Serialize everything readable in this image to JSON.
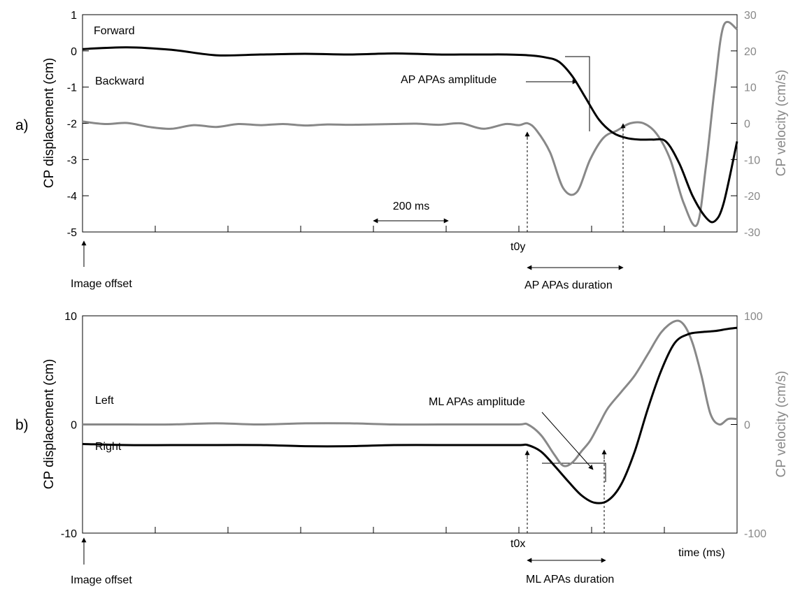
{
  "chart_data": [
    {
      "type": "line",
      "panel_label": "a)",
      "ylabel": "CP displacement (cm)",
      "y2label": "CP velocity (cm/s)",
      "xlabel": "",
      "ylim": [
        -5,
        1
      ],
      "y2lim": [
        -30,
        30
      ],
      "yticks": [
        "1",
        "0",
        "-1",
        "-2",
        "-3",
        "-4",
        "-5"
      ],
      "y2ticks": [
        "30",
        "20",
        "10",
        "0",
        "-10",
        "-20",
        "-30"
      ],
      "grid": false,
      "colors": {
        "displacement": "#000000",
        "velocity": "#888888"
      },
      "series": [
        {
          "axis": "left",
          "color": "#000000",
          "x": [
            0,
            100,
            200,
            300,
            400,
            500,
            600,
            700,
            800,
            850,
            900,
            950,
            1000,
            1040,
            1070,
            1100,
            1130,
            1160,
            1190,
            1220,
            1250,
            1280,
            1310,
            1340,
            1370,
            1400,
            1420,
            1440,
            1470
          ],
          "y": [
            0.05,
            0.1,
            0.03,
            -0.12,
            -0.1,
            -0.08,
            -0.1,
            -0.07,
            -0.1,
            -0.1,
            -0.1,
            -0.1,
            -0.12,
            -0.18,
            -0.3,
            -0.7,
            -1.3,
            -1.9,
            -2.25,
            -2.4,
            -2.45,
            -2.45,
            -2.5,
            -3.1,
            -4.0,
            -4.6,
            -4.7,
            -4.2,
            -2.5
          ]
        },
        {
          "axis": "right",
          "color": "#888888",
          "x": [
            0,
            50,
            100,
            150,
            200,
            250,
            300,
            350,
            400,
            450,
            500,
            550,
            600,
            650,
            700,
            750,
            800,
            850,
            900,
            950,
            980,
            1000,
            1020,
            1050,
            1080,
            1110,
            1140,
            1170,
            1200,
            1230,
            1260,
            1290,
            1320,
            1350,
            1380,
            1400,
            1420,
            1440,
            1470
          ],
          "y": [
            0.5,
            -0.2,
            0.1,
            -1,
            -1.5,
            -0.5,
            -1,
            -0.2,
            -0.5,
            -0.2,
            -0.6,
            -0.3,
            -0.4,
            -0.3,
            -0.2,
            -0.1,
            -0.4,
            0,
            -1.5,
            -0.2,
            -0.5,
            0,
            -2,
            -8,
            -18,
            -19,
            -10,
            -4,
            -2,
            0,
            0,
            -3,
            -10,
            -22,
            -28,
            -12,
            10,
            27,
            26
          ]
        }
      ],
      "annotations": {
        "forward": "Forward",
        "backward": "Backward",
        "scale_bar": "200 ms",
        "amplitude": "AP APAs amplitude",
        "onset": "t0y",
        "duration": "AP APAs duration",
        "offset": "Image offset"
      }
    },
    {
      "type": "line",
      "panel_label": "b)",
      "ylabel": "CP displacement (cm)",
      "y2label": "CP velocity (cm/s)",
      "xlabel": "time (ms)",
      "ylim": [
        -10,
        10
      ],
      "y2lim": [
        -100,
        100
      ],
      "yticks": [
        "10",
        "0",
        "-10"
      ],
      "y2ticks": [
        "100",
        "0",
        "-100"
      ],
      "grid": false,
      "colors": {
        "displacement": "#000000",
        "velocity": "#888888"
      },
      "series": [
        {
          "axis": "left",
          "color": "#000000",
          "x": [
            0,
            100,
            200,
            300,
            400,
            500,
            600,
            700,
            800,
            900,
            980,
            1000,
            1030,
            1060,
            1090,
            1120,
            1150,
            1180,
            1210,
            1240,
            1270,
            1300,
            1330,
            1360,
            1390,
            1420,
            1450,
            1470
          ],
          "y": [
            -1.8,
            -1.9,
            -1.9,
            -1.9,
            -1.9,
            -2.0,
            -2.0,
            -1.9,
            -1.9,
            -1.9,
            -1.9,
            -1.9,
            -2.5,
            -3.8,
            -5.2,
            -6.5,
            -7.2,
            -7.0,
            -5.5,
            -2.5,
            1.5,
            5.0,
            7.5,
            8.3,
            8.5,
            8.6,
            8.8,
            8.9
          ]
        },
        {
          "axis": "right",
          "color": "#888888",
          "x": [
            0,
            100,
            200,
            300,
            400,
            500,
            600,
            700,
            800,
            900,
            980,
            1000,
            1030,
            1060,
            1080,
            1100,
            1120,
            1140,
            1160,
            1180,
            1210,
            1240,
            1270,
            1300,
            1330,
            1350,
            1370,
            1390,
            1410,
            1430,
            1450,
            1470
          ],
          "y": [
            0,
            0,
            0,
            1,
            0,
            1,
            1,
            0,
            0,
            0,
            0,
            0,
            -10,
            -28,
            -38,
            -35,
            -25,
            -15,
            0,
            15,
            30,
            45,
            65,
            85,
            95,
            92,
            75,
            45,
            10,
            0,
            5,
            5
          ]
        }
      ],
      "annotations": {
        "left": "Left",
        "right": "Right",
        "amplitude": "ML APAs amplitude",
        "onset": "t0x",
        "duration": "ML APAs duration",
        "offset": "Image offset"
      }
    }
  ]
}
